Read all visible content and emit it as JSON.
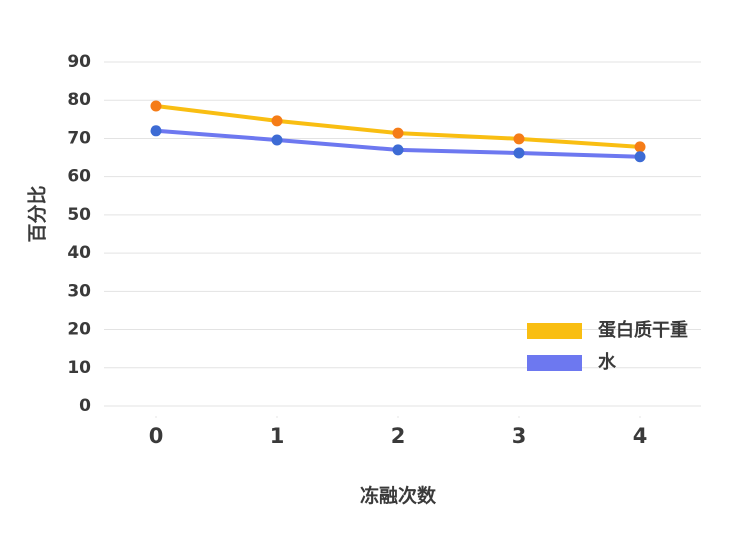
{
  "chart_data": {
    "type": "line",
    "title": "",
    "xlabel": "冻融次数",
    "ylabel": "百分比",
    "x": [
      0,
      1,
      2,
      3,
      4
    ],
    "categories": [
      "0",
      "1",
      "2",
      "3",
      "4"
    ],
    "ylim": [
      0,
      90
    ],
    "yticks": [
      "0",
      "10",
      "20",
      "30",
      "40",
      "50",
      "60",
      "70",
      "80",
      "90"
    ],
    "grid": true,
    "legend_position": "lower-right",
    "series": [
      {
        "name": "蛋白质干重",
        "values": [
          78.5,
          74.6,
          71.4,
          69.9,
          67.8
        ],
        "line_color": "#F9BE12",
        "marker_color": "#F57C17"
      },
      {
        "name": "水",
        "values": [
          72.0,
          69.6,
          67.0,
          66.2,
          65.2
        ],
        "line_color": "#6D78F0",
        "marker_color": "#3D6BD4"
      }
    ]
  },
  "colors": {
    "grid": "#e3e3e3",
    "text": "#3a3a3a"
  }
}
